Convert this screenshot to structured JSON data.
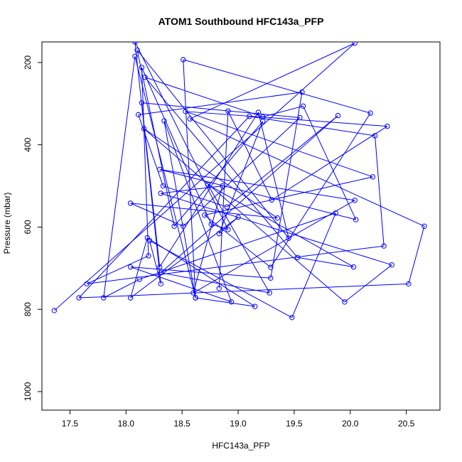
{
  "chart_data": {
    "type": "line",
    "title": "ATOM1 Southbound HFC143a_PFP",
    "xlabel": "HFC143a_PFP",
    "ylabel": "Pressure (mbar)",
    "xlim": [
      17.25,
      20.8
    ],
    "ylim": [
      1045,
      150
    ],
    "y_reversed": true,
    "x_ticks": [
      17.5,
      18.0,
      18.5,
      19.0,
      19.5,
      20.0,
      20.5
    ],
    "x_tick_labels": [
      "17.5",
      "18.0",
      "18.5",
      "19.0",
      "19.5",
      "20.0",
      "20.5"
    ],
    "y_ticks": [
      200,
      400,
      600,
      800,
      1000
    ],
    "y_tick_labels": [
      "200",
      "400",
      "600",
      "800",
      "1000"
    ],
    "grid": false,
    "series_color": "#0000ff",
    "marker": "open-circle",
    "series": [
      {
        "points": [
          [
            17.36,
            803
          ],
          [
            17.58,
            772
          ],
          [
            17.65,
            738
          ],
          [
            17.8,
            772
          ],
          [
            18.04,
            772
          ],
          [
            18.04,
            542
          ],
          [
            18.04,
            697
          ],
          [
            18.08,
            150
          ],
          [
            18.08,
            185
          ],
          [
            18.1,
            170
          ],
          [
            18.11,
            327
          ],
          [
            18.12,
            727
          ],
          [
            18.14,
            298
          ],
          [
            18.14,
            212
          ],
          [
            18.16,
            361
          ],
          [
            18.17,
            236
          ],
          [
            18.19,
            626
          ],
          [
            18.2,
            670
          ],
          [
            18.21,
            633
          ],
          [
            18.3,
            697
          ],
          [
            18.3,
            460
          ],
          [
            18.31,
            711
          ],
          [
            18.31,
            738
          ],
          [
            18.31,
            518
          ],
          [
            18.33,
            500
          ],
          [
            18.34,
            342
          ],
          [
            18.43,
            598
          ],
          [
            18.51,
            598
          ],
          [
            18.51,
            193
          ],
          [
            18.53,
            319
          ],
          [
            18.57,
            337
          ],
          [
            18.6,
            760
          ],
          [
            18.62,
            772
          ],
          [
            18.62,
            772
          ],
          [
            18.7,
            571
          ],
          [
            18.73,
            497
          ],
          [
            18.76,
            593
          ],
          [
            18.83,
            616
          ],
          [
            18.83,
            749
          ],
          [
            18.86,
            500
          ],
          [
            18.9,
            551
          ],
          [
            18.91,
            318
          ],
          [
            18.91,
            606
          ],
          [
            18.94,
            782
          ],
          [
            19.0,
            576
          ],
          [
            19.1,
            331
          ],
          [
            19.15,
            793
          ],
          [
            19.18,
            321
          ],
          [
            19.22,
            332
          ],
          [
            19.22,
            343
          ],
          [
            19.28,
            760
          ],
          [
            19.29,
            698
          ],
          [
            19.29,
            724
          ],
          [
            19.3,
            534
          ],
          [
            19.35,
            578
          ],
          [
            19.45,
            627
          ],
          [
            19.48,
            820
          ],
          [
            19.53,
            674
          ],
          [
            19.55,
            334
          ],
          [
            19.57,
            272
          ],
          [
            19.58,
            306
          ],
          [
            19.87,
            566
          ],
          [
            19.89,
            329
          ],
          [
            19.95,
            782
          ],
          [
            20.03,
            697
          ],
          [
            20.04,
            153
          ],
          [
            20.04,
            535
          ],
          [
            20.05,
            582
          ],
          [
            20.18,
            323
          ],
          [
            20.2,
            478
          ],
          [
            20.22,
            378
          ],
          [
            20.3,
            646
          ],
          [
            20.33,
            355
          ],
          [
            20.37,
            692
          ],
          [
            20.52,
            738
          ],
          [
            20.66,
            598
          ]
        ],
        "path_order": [
          0,
          65,
          30,
          75,
          74,
          1,
          45,
          70,
          71,
          2,
          17,
          13,
          36,
          42,
          7,
          22,
          18,
          56,
          61,
          11,
          3,
          8,
          32,
          46,
          16,
          4,
          44,
          37,
          49,
          26,
          9,
          55,
          47,
          19,
          12,
          58,
          27,
          5,
          54,
          14,
          63,
          73,
          23,
          39,
          31,
          66,
          20,
          67,
          60,
          48,
          15,
          57,
          64,
          35,
          50,
          21,
          62,
          40,
          24,
          10,
          59,
          52,
          6,
          43,
          25,
          33,
          28,
          68,
          51,
          34,
          69,
          29,
          72,
          53,
          41,
          38
        ]
      }
    ]
  }
}
